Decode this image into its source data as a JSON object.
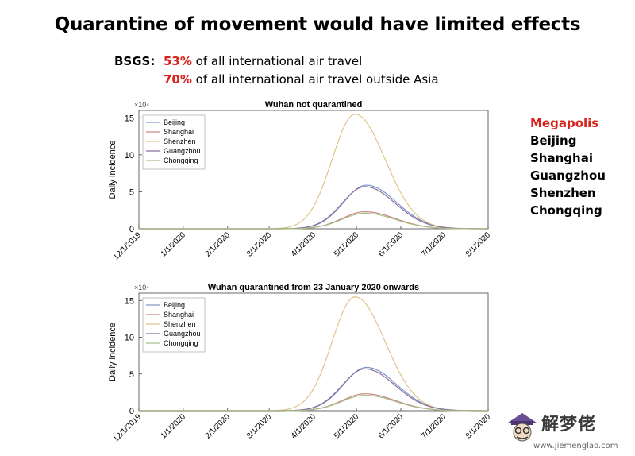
{
  "slide": {
    "title": "Quarantine of movement would have limited effects",
    "bsgs_label": "BSGS:",
    "bsgs_line1_pct": "53%",
    "bsgs_line1_text": " of all international air travel",
    "bsgs_line2_pct": "70%",
    "bsgs_line2_text": " of all international air travel outside Asia",
    "megapolis_heading": "Megapolis",
    "megapolis_list": [
      "Beijing",
      "Shanghai",
      "Guangzhou",
      "Shenzhen",
      "Chongqing"
    ],
    "accent_color": "#d8231c"
  },
  "watermark": {
    "text": "解梦佬",
    "site": "www.jiemenglao.com"
  },
  "chart_data": [
    {
      "type": "line",
      "title": "Wuhan not quarantined",
      "xlabel": "",
      "ylabel": "Daily incidence",
      "y_multiplier": "×10⁴",
      "x_ticks": [
        "12/1/2019",
        "1/1/2020",
        "2/1/2020",
        "3/1/2020",
        "4/1/2020",
        "5/1/2020",
        "6/1/2020",
        "7/1/2020",
        "8/1/2020"
      ],
      "y_ticks": [
        0,
        5,
        10,
        15
      ],
      "ylim": [
        0,
        16
      ],
      "legend_position": "top-left",
      "series": [
        {
          "name": "Beijing",
          "color": "#7d97c8",
          "peak_date": "2020-05-08",
          "peak": 5.9
        },
        {
          "name": "Shanghai",
          "color": "#c98a82",
          "peak_date": "2020-05-07",
          "peak": 2.3
        },
        {
          "name": "Shenzhen",
          "color": "#e2c48a",
          "peak_date": "2020-04-30",
          "peak": 15.5
        },
        {
          "name": "Guangzhou",
          "color": "#8a6f9e",
          "peak_date": "2020-05-07",
          "peak": 5.7
        },
        {
          "name": "Chongqing",
          "color": "#a6c087",
          "peak_date": "2020-05-07",
          "peak": 2.1
        }
      ]
    },
    {
      "type": "line",
      "title": "Wuhan quarantined from 23 January 2020 onwards",
      "xlabel": "",
      "ylabel": "Daily incidence",
      "y_multiplier": "×10⁴",
      "x_ticks": [
        "12/1/2019",
        "1/1/2020",
        "2/1/2020",
        "3/1/2020",
        "4/1/2020",
        "5/1/2020",
        "6/1/2020",
        "7/1/2020",
        "8/1/2020"
      ],
      "y_ticks": [
        0,
        5,
        10,
        15
      ],
      "ylim": [
        0,
        16
      ],
      "legend_position": "top-left",
      "series": [
        {
          "name": "Beijing",
          "color": "#7d97c8",
          "peak_date": "2020-05-08",
          "peak": 5.9
        },
        {
          "name": "Shanghai",
          "color": "#c98a82",
          "peak_date": "2020-05-07",
          "peak": 2.3
        },
        {
          "name": "Shenzhen",
          "color": "#e2c48a",
          "peak_date": "2020-04-30",
          "peak": 15.5
        },
        {
          "name": "Guangzhou",
          "color": "#8a6f9e",
          "peak_date": "2020-05-07",
          "peak": 5.7
        },
        {
          "name": "Chongqing",
          "color": "#a6c087",
          "peak_date": "2020-05-07",
          "peak": 2.1
        }
      ]
    }
  ]
}
